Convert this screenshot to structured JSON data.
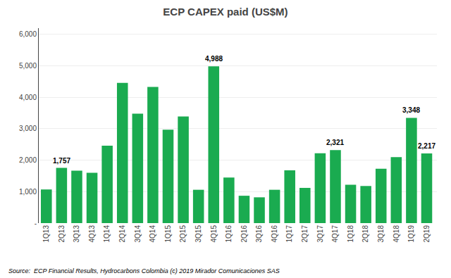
{
  "chart_data": {
    "type": "bar",
    "title": "ECP CAPEX paid (US$M)",
    "source": "Source:  ECP Financial Results, Hydrocarbons Colombia (c) 2019 Mirador Comunicaciones SAS",
    "categories": [
      "1Q13",
      "2Q13",
      "3Q13",
      "4Q13",
      "1Q14",
      "2Q14",
      "3Q14",
      "4Q14",
      "1Q15",
      "2Q15",
      "3Q15",
      "4Q15",
      "1Q16",
      "2Q16",
      "3Q16",
      "4Q16",
      "1Q17",
      "2Q17",
      "3Q17",
      "4Q17",
      "1Q18",
      "2Q18",
      "3Q18",
      "4Q18",
      "1Q19",
      "2Q19"
    ],
    "values": [
      1070,
      1757,
      1670,
      1600,
      2460,
      4460,
      3480,
      4330,
      2970,
      3390,
      1060,
      4988,
      1450,
      870,
      820,
      1060,
      1680,
      1120,
      2220,
      2321,
      1220,
      1180,
      1730,
      2100,
      3348,
      2217
    ],
    "color": "#1aab50",
    "annotations": [
      {
        "x": "2Q13",
        "y": 1757,
        "text": "1,757"
      },
      {
        "x": "4Q15",
        "y": 4988,
        "text": "4,988"
      },
      {
        "x": "4Q17",
        "y": 2321,
        "text": "2,321"
      },
      {
        "x": "1Q19",
        "y": 3348,
        "text": "3,348"
      },
      {
        "x": "2Q19",
        "y": 2217,
        "text": "2,217"
      }
    ],
    "ylim": [
      0,
      6200
    ],
    "yticks": [
      {
        "value": 0,
        "label": "-"
      },
      {
        "value": 1000,
        "label": "1,000"
      },
      {
        "value": 2000,
        "label": "2,000"
      },
      {
        "value": 3000,
        "label": "3,000"
      },
      {
        "value": 4000,
        "label": "4,000"
      },
      {
        "value": 5000,
        "label": "5,000"
      },
      {
        "value": 6000,
        "label": "6,000"
      }
    ],
    "grid": true
  }
}
